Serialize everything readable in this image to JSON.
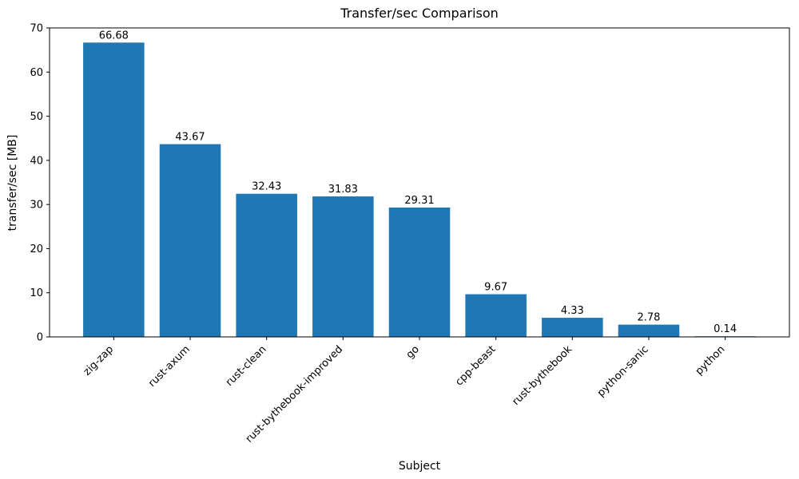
{
  "chart_data": {
    "type": "bar",
    "title": "Transfer/sec Comparison",
    "xlabel": "Subject",
    "ylabel": "transfer/sec [MB]",
    "categories": [
      "zig-zap",
      "rust-axum",
      "rust-clean",
      "rust-bythebook-improved",
      "go",
      "cpp-beast",
      "rust-bythebook",
      "python-sanic",
      "python"
    ],
    "values": [
      66.68,
      43.67,
      32.43,
      31.83,
      29.31,
      9.67,
      4.33,
      2.78,
      0.14
    ],
    "value_labels": [
      "66.68",
      "43.67",
      "32.43",
      "31.83",
      "29.31",
      "9.67",
      "4.33",
      "2.78",
      "0.14"
    ],
    "ylim": [
      0,
      70
    ],
    "yticks": [
      0,
      10,
      20,
      30,
      40,
      50,
      60,
      70
    ],
    "bar_color": "#1f77b4",
    "axis_color": "#000000",
    "grid": false,
    "legend": null,
    "x_tick_rotation_deg": 45
  }
}
